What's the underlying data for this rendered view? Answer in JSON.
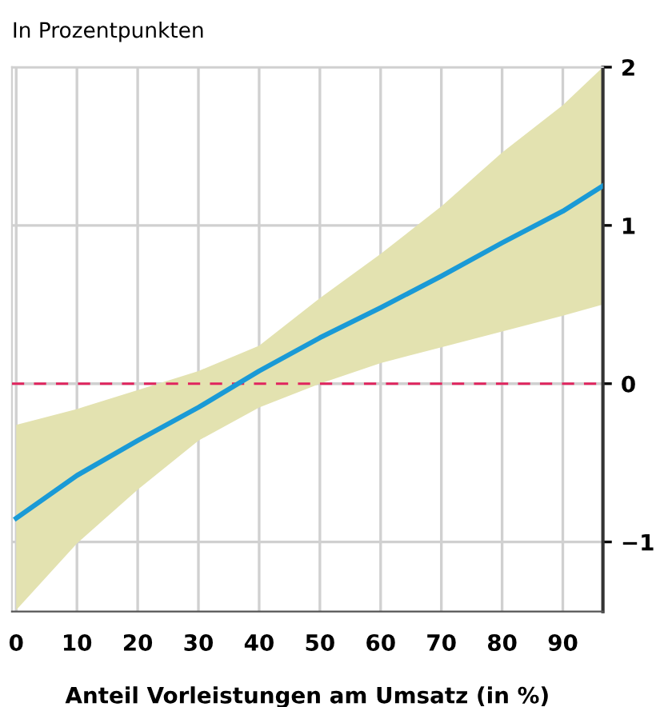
{
  "chart_data": {
    "type": "line",
    "ylabel": "In Prozentpunkten",
    "xlabel": "Anteil Vorleistungen am Umsatz (in %)",
    "series": [
      {
        "color": "#1a9ad6",
        "x": [
          0,
          10,
          20,
          30,
          40,
          50,
          60,
          70,
          80,
          90,
          96.6
        ],
        "values": [
          -0.85,
          -0.58,
          -0.36,
          -0.15,
          0.08,
          0.29,
          0.48,
          0.68,
          0.89,
          1.09,
          1.25
        ],
        "lower": [
          -1.43,
          -1.01,
          -0.67,
          -0.36,
          -0.15,
          0.0,
          0.13,
          0.23,
          0.33,
          0.43,
          0.5
        ],
        "upper": [
          -0.26,
          -0.16,
          -0.04,
          0.08,
          0.24,
          0.54,
          0.82,
          1.12,
          1.46,
          1.76,
          2.0
        ]
      }
    ],
    "xlim": [
      -0.7,
      96.6
    ],
    "ylim": [
      -1.44,
      2
    ],
    "xticks": [
      0,
      10,
      20,
      30,
      40,
      50,
      60,
      70,
      80,
      90
    ],
    "yticks": [
      {
        "value": -1,
        "label": "−1"
      },
      0,
      1,
      2
    ],
    "ref_lines": [
      {
        "axis": "y",
        "value": 0,
        "label": null,
        "color": "#e0245e",
        "line_style": "dashed"
      }
    ],
    "grid": true,
    "marker": "none",
    "line_style": "solid",
    "legend": false
  }
}
